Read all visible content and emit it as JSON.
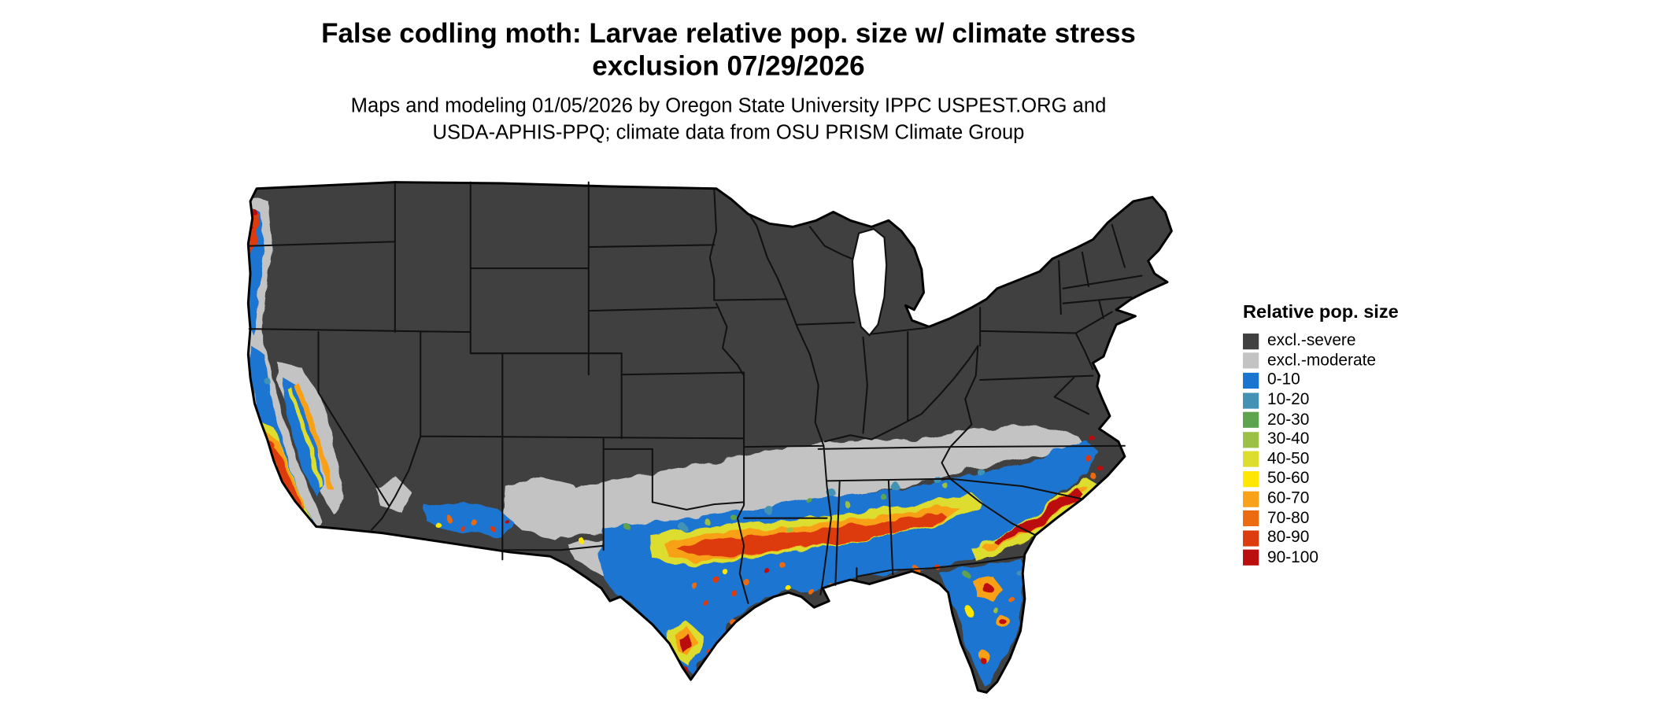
{
  "title": {
    "line1": "False codling moth: Larvae relative pop. size w/ climate stress",
    "line2": "exclusion 07/29/2026"
  },
  "subtitle": {
    "line1": "Maps and modeling 01/05/2026 by Oregon State University IPPC USPEST.ORG and",
    "line2": "USDA-APHIS-PPQ; climate data from OSU PRISM Climate Group"
  },
  "legend": {
    "title": "Relative pop. size",
    "entries": [
      {
        "label": "excl.-severe",
        "color_key": "severe"
      },
      {
        "label": "excl.-moderate",
        "color_key": "moderate"
      },
      {
        "label": "0-10",
        "color_key": "c0_10"
      },
      {
        "label": "10-20",
        "color_key": "c10_20"
      },
      {
        "label": "20-30",
        "color_key": "c20_30"
      },
      {
        "label": "30-40",
        "color_key": "c30_40"
      },
      {
        "label": "40-50",
        "color_key": "c40_50"
      },
      {
        "label": "50-60",
        "color_key": "c50_60"
      },
      {
        "label": "60-70",
        "color_key": "c60_70"
      },
      {
        "label": "70-80",
        "color_key": "c70_80"
      },
      {
        "label": "80-90",
        "color_key": "c80_90"
      },
      {
        "label": "90-100",
        "color_key": "c90_100"
      }
    ]
  },
  "colors": {
    "severe": "#404040",
    "moderate": "#c3c3c3",
    "c0_10": "#1a75d1",
    "c10_20": "#4392b5",
    "c20_30": "#5ea34e",
    "c30_40": "#9cbf45",
    "c40_50": "#dcdd2e",
    "c50_60": "#ffe703",
    "c60_70": "#f8a119",
    "c70_80": "#ec6b11",
    "c80_90": "#dd3b10",
    "c90_100": "#bb0f0f"
  }
}
